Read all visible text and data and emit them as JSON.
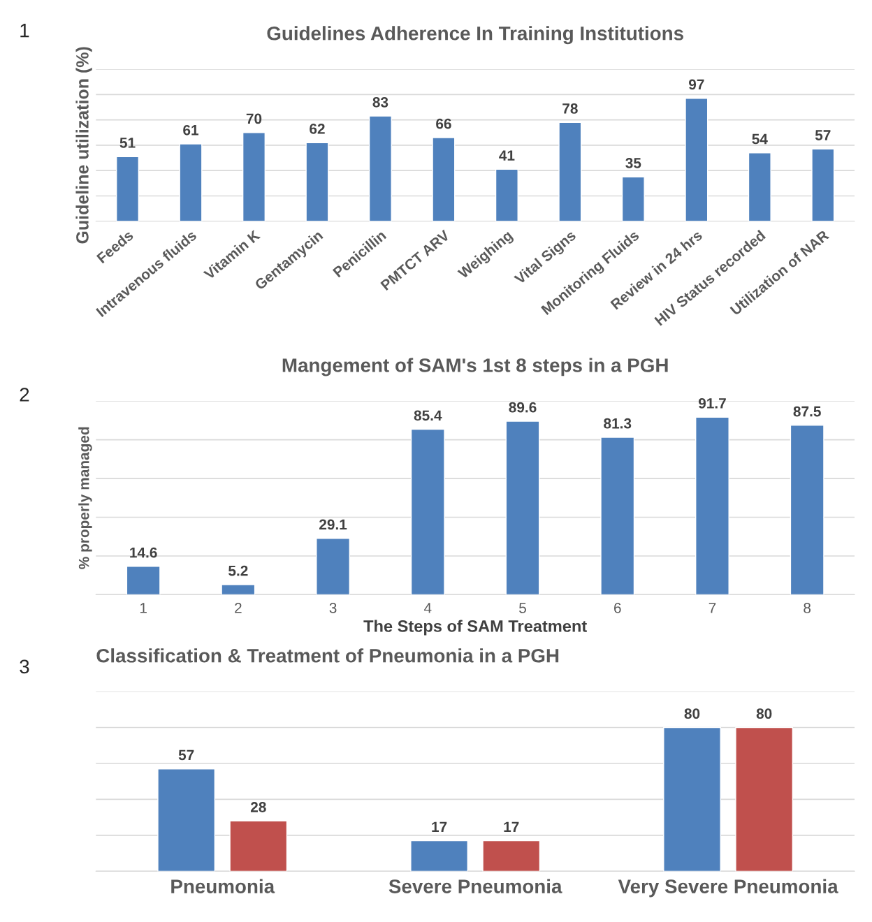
{
  "chart_data": [
    {
      "type": "bar",
      "title": "Guidelines Adherence In Training Institutions",
      "ylabel": "Guideline utilization (%)",
      "annotations": [
        "1"
      ],
      "categories": [
        "Feeds",
        "Intravenous fluids",
        "Vitamin K",
        "Gentamycin",
        "Penicillin",
        "PMTCT ARV",
        "Weighing",
        "Vital Signs",
        "Monitoring Fluids",
        "Review in 24 hrs",
        "HIV Status recorded",
        "Utilization of NAR"
      ],
      "values": [
        51,
        61,
        70,
        62,
        83,
        66,
        41,
        78,
        35,
        97,
        54,
        57
      ],
      "color": "#4f81bd",
      "ylim": [
        0,
        120
      ],
      "yticks": [
        {
          "value": 0,
          "label": null
        },
        {
          "value": 20,
          "label": null
        },
        {
          "value": 40,
          "label": null
        },
        {
          "value": 60,
          "label": null
        },
        {
          "value": 80,
          "label": null
        },
        {
          "value": 100,
          "label": null
        },
        {
          "value": 120,
          "label": null
        }
      ],
      "grid": "y",
      "tick_labels": "x",
      "data_labels": true
    },
    {
      "type": "bar",
      "title": "Mangement of SAM's 1st 8 steps in a PGH",
      "xlabel": "The Steps of SAM Treatment",
      "ylabel": "% properly managed",
      "annotations": [
        "2"
      ],
      "categories": [
        "1",
        "2",
        "3",
        "4",
        "5",
        "6",
        "7",
        "8"
      ],
      "values": [
        14.6,
        5.2,
        29.1,
        85.4,
        89.6,
        81.3,
        91.7,
        87.5
      ],
      "color": "#4f81bd",
      "ylim": [
        0,
        100
      ],
      "yticks": [
        {
          "value": 0,
          "label": null
        },
        {
          "value": 20,
          "label": null
        },
        {
          "value": 40,
          "label": null
        },
        {
          "value": 60,
          "label": null
        },
        {
          "value": 80,
          "label": null
        },
        {
          "value": 100,
          "label": null
        }
      ],
      "grid": "y",
      "tick_labels": "x",
      "data_labels": true
    },
    {
      "type": "bar",
      "title": "Classification & Treatment of Pneumonia in a PGH",
      "annotations": [
        "3"
      ],
      "categories": [
        "Pneumonia",
        "Severe Pneumonia",
        "Very Severe Pneumonia"
      ],
      "series": [
        {
          "color": "#4f81bd",
          "values": [
            57,
            17,
            80
          ]
        },
        {
          "color": "#c0504d",
          "values": [
            28,
            17,
            80
          ]
        }
      ],
      "ylim": [
        0,
        100
      ],
      "yticks": [
        {
          "value": 0,
          "label": null
        },
        {
          "value": 20,
          "label": null
        },
        {
          "value": 40,
          "label": null
        },
        {
          "value": 60,
          "label": null
        },
        {
          "value": 80,
          "label": null
        },
        {
          "value": 100,
          "label": null
        }
      ],
      "grid": "y",
      "tick_labels": "x",
      "data_labels": true
    }
  ]
}
